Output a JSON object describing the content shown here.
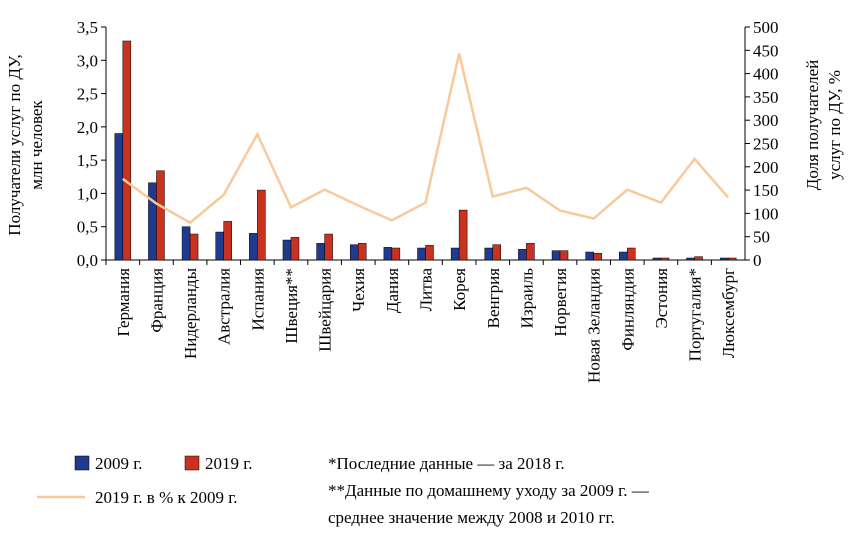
{
  "chart_data": {
    "type": "bar",
    "categories": [
      "Германия",
      "Франция",
      "Нидерланды",
      "Австралия",
      "Испания",
      "Швеция**",
      "Швейцария",
      "Чехия",
      "Дания",
      "Литва",
      "Корея",
      "Венгрия",
      "Израиль",
      "Норвегия",
      "Новая Зеландия",
      "Финляндия",
      "Эстония",
      "Португалия*",
      "Люксембург"
    ],
    "series": [
      {
        "name": "2009 г.",
        "color": "#1f3a8f",
        "type": "bar",
        "values": [
          1.9,
          1.16,
          0.5,
          0.42,
          0.4,
          0.3,
          0.25,
          0.23,
          0.19,
          0.18,
          0.18,
          0.18,
          0.16,
          0.14,
          0.12,
          0.12,
          0.03,
          0.03,
          0.03
        ]
      },
      {
        "name": "2019 г.",
        "color": "#c8321e",
        "type": "bar",
        "values": [
          3.29,
          1.34,
          0.39,
          0.58,
          1.05,
          0.34,
          0.39,
          0.25,
          0.18,
          0.22,
          0.75,
          0.23,
          0.25,
          0.14,
          0.1,
          0.18,
          0.03,
          0.05,
          0.03
        ]
      },
      {
        "name": "2019 г. в % к 2009 г.",
        "color": "#f9c99b",
        "type": "line",
        "axis": "y2",
        "values": [
          174,
          121,
          80,
          140,
          270,
          113,
          151,
          117,
          85,
          123,
          443,
          136,
          155,
          106,
          89,
          151,
          123,
          217,
          134
        ]
      }
    ],
    "y_label": [
      "Получатели услуг по ДУ,",
      "млн человек"
    ],
    "y2_label": [
      "Доля получателей",
      "услуг по ДУ, %"
    ],
    "ylim": [
      0,
      3.5
    ],
    "yticks": [
      {
        "value": 0,
        "label": "0,0"
      },
      {
        "value": 0.5,
        "label": "0,5"
      },
      {
        "value": 1,
        "label": "1,0"
      },
      {
        "value": 1.5,
        "label": "1,5"
      },
      {
        "value": 2,
        "label": "2,0"
      },
      {
        "value": 2.5,
        "label": "2,5"
      },
      {
        "value": 3,
        "label": "3,0"
      },
      {
        "value": 3.5,
        "label": "3,5"
      }
    ],
    "y2lim": [
      0,
      500
    ],
    "y2ticks": [
      0,
      50,
      100,
      150,
      200,
      250,
      300,
      350,
      400,
      450,
      500
    ],
    "notes": [
      "*Последние данные — за 2018 г.",
      "**Данные по домашнему уходу за 2009 г. —",
      "среднее значение между 2008 и 2010 гг."
    ]
  }
}
